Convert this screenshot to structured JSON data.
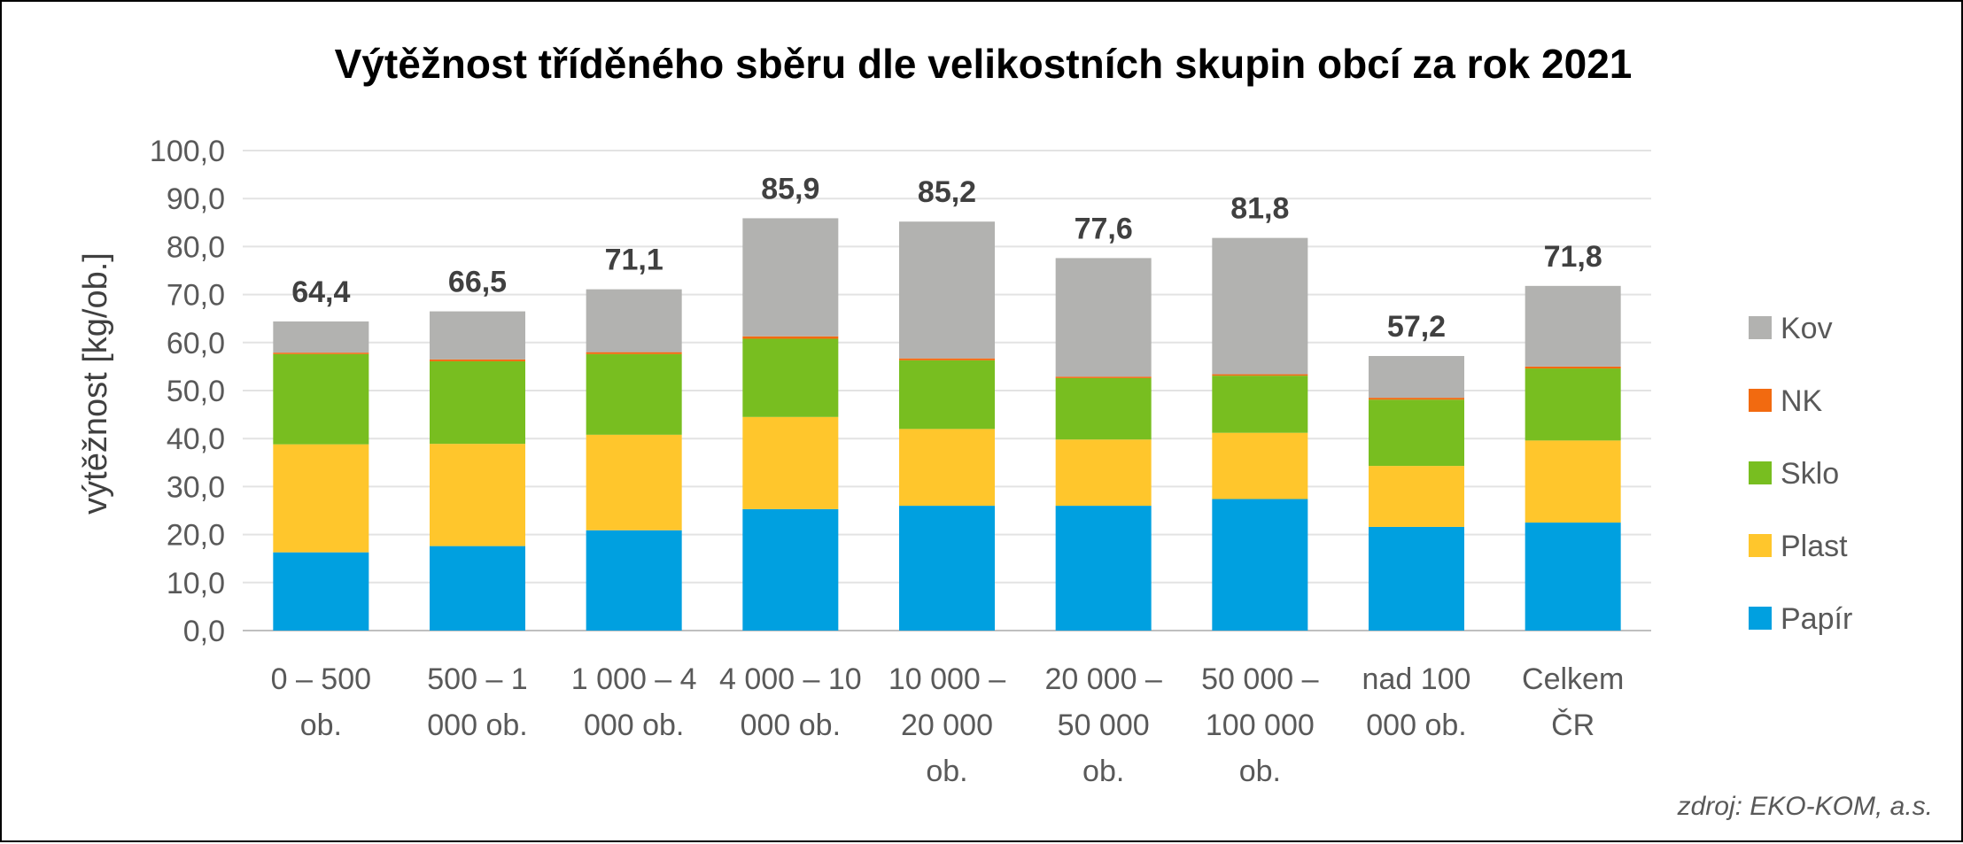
{
  "chart_data": {
    "type": "bar",
    "stacked": true,
    "title": "Výtěžnost tříděného sběru dle velikostních skupin obcí za rok 2021",
    "ylabel": "výtěžnost [kg/ob.]",
    "xlabel": "",
    "ylim": [
      0,
      100
    ],
    "yticks": [
      "0,0",
      "10,0",
      "20,0",
      "30,0",
      "40,0",
      "50,0",
      "60,0",
      "70,0",
      "80,0",
      "90,0",
      "100,0"
    ],
    "grid": true,
    "legend_position": "right",
    "categories": [
      [
        "0 – 500",
        "ob."
      ],
      [
        "500 – 1",
        "000 ob."
      ],
      [
        "1 000 – 4",
        "000 ob."
      ],
      [
        "4 000 – 10",
        "000 ob."
      ],
      [
        "10 000 –",
        "20 000",
        "ob."
      ],
      [
        "20 000 –",
        "50 000",
        "ob."
      ],
      [
        "50 000 –",
        "100 000",
        "ob."
      ],
      [
        "nad 100",
        "000 ob."
      ],
      [
        "Celkem",
        "ČR"
      ]
    ],
    "series": [
      {
        "name": "Papír",
        "color": "#00A0E0",
        "values": [
          16.3,
          17.6,
          20.9,
          25.3,
          26.0,
          26.0,
          27.4,
          21.6,
          22.5
        ]
      },
      {
        "name": "Plast",
        "color": "#FFC62C",
        "values": [
          22.5,
          21.3,
          19.9,
          19.2,
          16.0,
          13.8,
          13.8,
          12.7,
          17.1
        ]
      },
      {
        "name": "Sklo",
        "color": "#78BE20",
        "values": [
          18.8,
          17.2,
          16.8,
          16.3,
          14.3,
          12.8,
          11.9,
          13.8,
          15.0
        ]
      },
      {
        "name": "NK",
        "color": "#F26A10",
        "values": [
          0.3,
          0.4,
          0.4,
          0.5,
          0.4,
          0.3,
          0.3,
          0.4,
          0.4
        ]
      },
      {
        "name": "Kov",
        "color": "#B2B2B0",
        "values": [
          6.5,
          10.0,
          13.1,
          24.6,
          28.5,
          24.7,
          28.4,
          8.7,
          16.8
        ]
      }
    ],
    "totals": [
      "64,4",
      "66,5",
      "71,1",
      "85,9",
      "85,2",
      "77,6",
      "81,8",
      "57,2",
      "71,8"
    ]
  },
  "source_note": "zdroj: EKO-KOM, a.s."
}
